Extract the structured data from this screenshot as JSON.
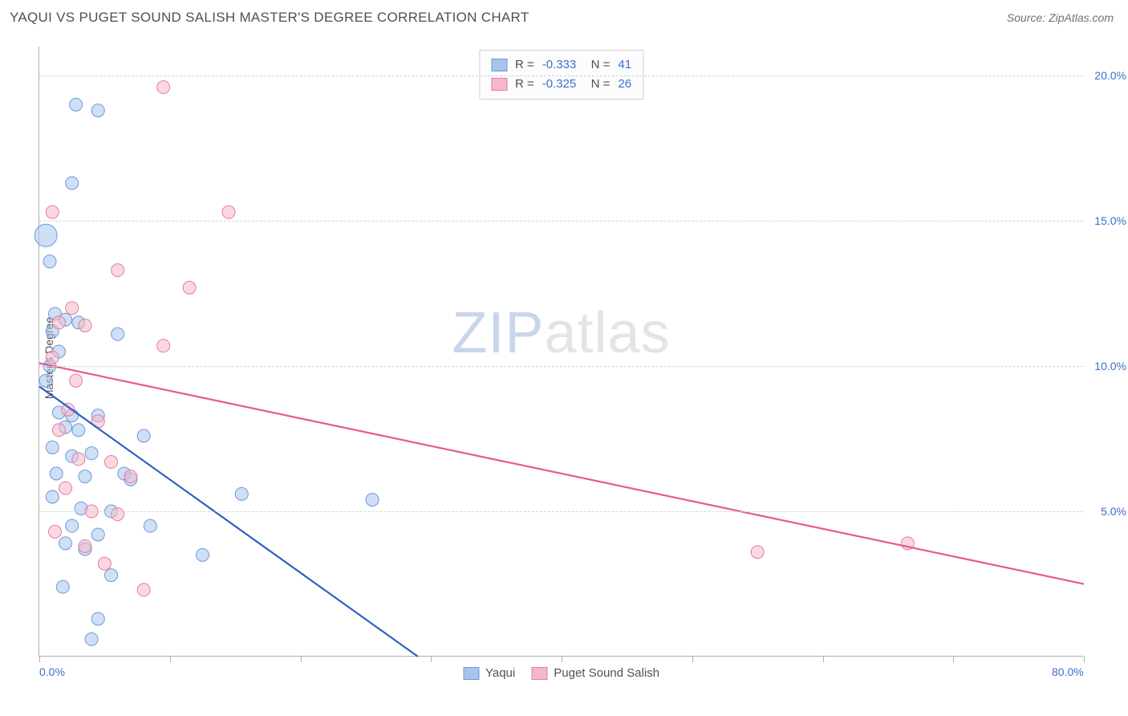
{
  "header": {
    "title": "YAQUI VS PUGET SOUND SALISH MASTER'S DEGREE CORRELATION CHART",
    "source": "Source: ZipAtlas.com"
  },
  "watermark": {
    "zip": "ZIP",
    "atlas": "atlas"
  },
  "chart": {
    "type": "scatter",
    "ylabel": "Master's Degree",
    "xlim": [
      0,
      80
    ],
    "ylim": [
      0,
      21
    ],
    "x_ticks": [
      0,
      10,
      20,
      30,
      40,
      50,
      60,
      70,
      80
    ],
    "x_tick_labels": {
      "first": "0.0%",
      "last": "80.0%"
    },
    "y_grid": [
      5,
      10,
      15,
      20
    ],
    "y_grid_labels": [
      "5.0%",
      "10.0%",
      "15.0%",
      "20.0%"
    ],
    "background_color": "#ffffff",
    "grid_color": "#d4d4d4",
    "axis_color": "#b0b0b0",
    "label_color": "#3b6fc9",
    "series": [
      {
        "name": "Yaqui",
        "color_fill": "#a8c4ec",
        "color_stroke": "#6b9ad8",
        "fill_opacity": 0.55,
        "marker_r": 8,
        "R": "-0.333",
        "N": "41",
        "trend": {
          "x1": 0,
          "y1": 9.3,
          "x2": 29,
          "y2": 0,
          "color": "#2d5fc4",
          "width": 2.2
        },
        "points": [
          {
            "x": 0.5,
            "y": 14.5,
            "r": 14
          },
          {
            "x": 2.8,
            "y": 19.0
          },
          {
            "x": 4.5,
            "y": 18.8
          },
          {
            "x": 2.5,
            "y": 16.3
          },
          {
            "x": 0.8,
            "y": 13.6
          },
          {
            "x": 1.2,
            "y": 11.8
          },
          {
            "x": 2.0,
            "y": 11.6
          },
          {
            "x": 3.0,
            "y": 11.5
          },
          {
            "x": 1.0,
            "y": 11.2
          },
          {
            "x": 6.0,
            "y": 11.1
          },
          {
            "x": 1.5,
            "y": 10.5
          },
          {
            "x": 0.8,
            "y": 10.0
          },
          {
            "x": 0.5,
            "y": 9.5
          },
          {
            "x": 1.5,
            "y": 8.4
          },
          {
            "x": 2.5,
            "y": 8.3
          },
          {
            "x": 4.5,
            "y": 8.3
          },
          {
            "x": 2.0,
            "y": 7.9
          },
          {
            "x": 3.0,
            "y": 7.8
          },
          {
            "x": 1.0,
            "y": 7.2
          },
          {
            "x": 8.0,
            "y": 7.6
          },
          {
            "x": 2.5,
            "y": 6.9
          },
          {
            "x": 4.0,
            "y": 7.0
          },
          {
            "x": 3.5,
            "y": 6.2
          },
          {
            "x": 6.5,
            "y": 6.3
          },
          {
            "x": 15.5,
            "y": 5.6
          },
          {
            "x": 25.5,
            "y": 5.4
          },
          {
            "x": 1.0,
            "y": 5.5
          },
          {
            "x": 2.5,
            "y": 4.5
          },
          {
            "x": 4.5,
            "y": 4.2
          },
          {
            "x": 8.5,
            "y": 4.5
          },
          {
            "x": 3.5,
            "y": 3.7
          },
          {
            "x": 12.5,
            "y": 3.5
          },
          {
            "x": 5.5,
            "y": 2.8
          },
          {
            "x": 1.8,
            "y": 2.4
          },
          {
            "x": 4.5,
            "y": 1.3
          },
          {
            "x": 4.0,
            "y": 0.6
          },
          {
            "x": 2.0,
            "y": 3.9
          },
          {
            "x": 3.2,
            "y": 5.1
          },
          {
            "x": 5.5,
            "y": 5.0
          },
          {
            "x": 1.3,
            "y": 6.3
          },
          {
            "x": 7.0,
            "y": 6.1
          }
        ]
      },
      {
        "name": "Puget Sound Salish",
        "color_fill": "#f5b8c8",
        "color_stroke": "#e87ba0",
        "fill_opacity": 0.55,
        "marker_r": 8,
        "R": "-0.325",
        "N": "26",
        "trend": {
          "x1": 0,
          "y1": 10.1,
          "x2": 80,
          "y2": 2.5,
          "color": "#e85a8a",
          "width": 2.2
        },
        "points": [
          {
            "x": 9.5,
            "y": 19.6
          },
          {
            "x": 14.5,
            "y": 15.3
          },
          {
            "x": 1.0,
            "y": 15.3
          },
          {
            "x": 6.0,
            "y": 13.3
          },
          {
            "x": 11.5,
            "y": 12.7
          },
          {
            "x": 2.5,
            "y": 12.0
          },
          {
            "x": 1.5,
            "y": 11.5
          },
          {
            "x": 3.5,
            "y": 11.4
          },
          {
            "x": 9.5,
            "y": 10.7
          },
          {
            "x": 1.0,
            "y": 10.3
          },
          {
            "x": 2.2,
            "y": 8.5
          },
          {
            "x": 4.5,
            "y": 8.1
          },
          {
            "x": 1.5,
            "y": 7.8
          },
          {
            "x": 3.0,
            "y": 6.8
          },
          {
            "x": 5.5,
            "y": 6.7
          },
          {
            "x": 7.0,
            "y": 6.2
          },
          {
            "x": 2.0,
            "y": 5.8
          },
          {
            "x": 4.0,
            "y": 5.0
          },
          {
            "x": 6.0,
            "y": 4.9
          },
          {
            "x": 3.5,
            "y": 3.8
          },
          {
            "x": 5.0,
            "y": 3.2
          },
          {
            "x": 8.0,
            "y": 2.3
          },
          {
            "x": 55.0,
            "y": 3.6
          },
          {
            "x": 66.5,
            "y": 3.9
          },
          {
            "x": 2.8,
            "y": 9.5
          },
          {
            "x": 1.2,
            "y": 4.3
          }
        ]
      }
    ],
    "legend_top": {
      "r_label": "R =",
      "n_label": "N ="
    },
    "legend_bottom": [
      {
        "label": "Yaqui",
        "fill": "#a8c4ec",
        "stroke": "#6b9ad8"
      },
      {
        "label": "Puget Sound Salish",
        "fill": "#f5b8c8",
        "stroke": "#e87ba0"
      }
    ]
  }
}
